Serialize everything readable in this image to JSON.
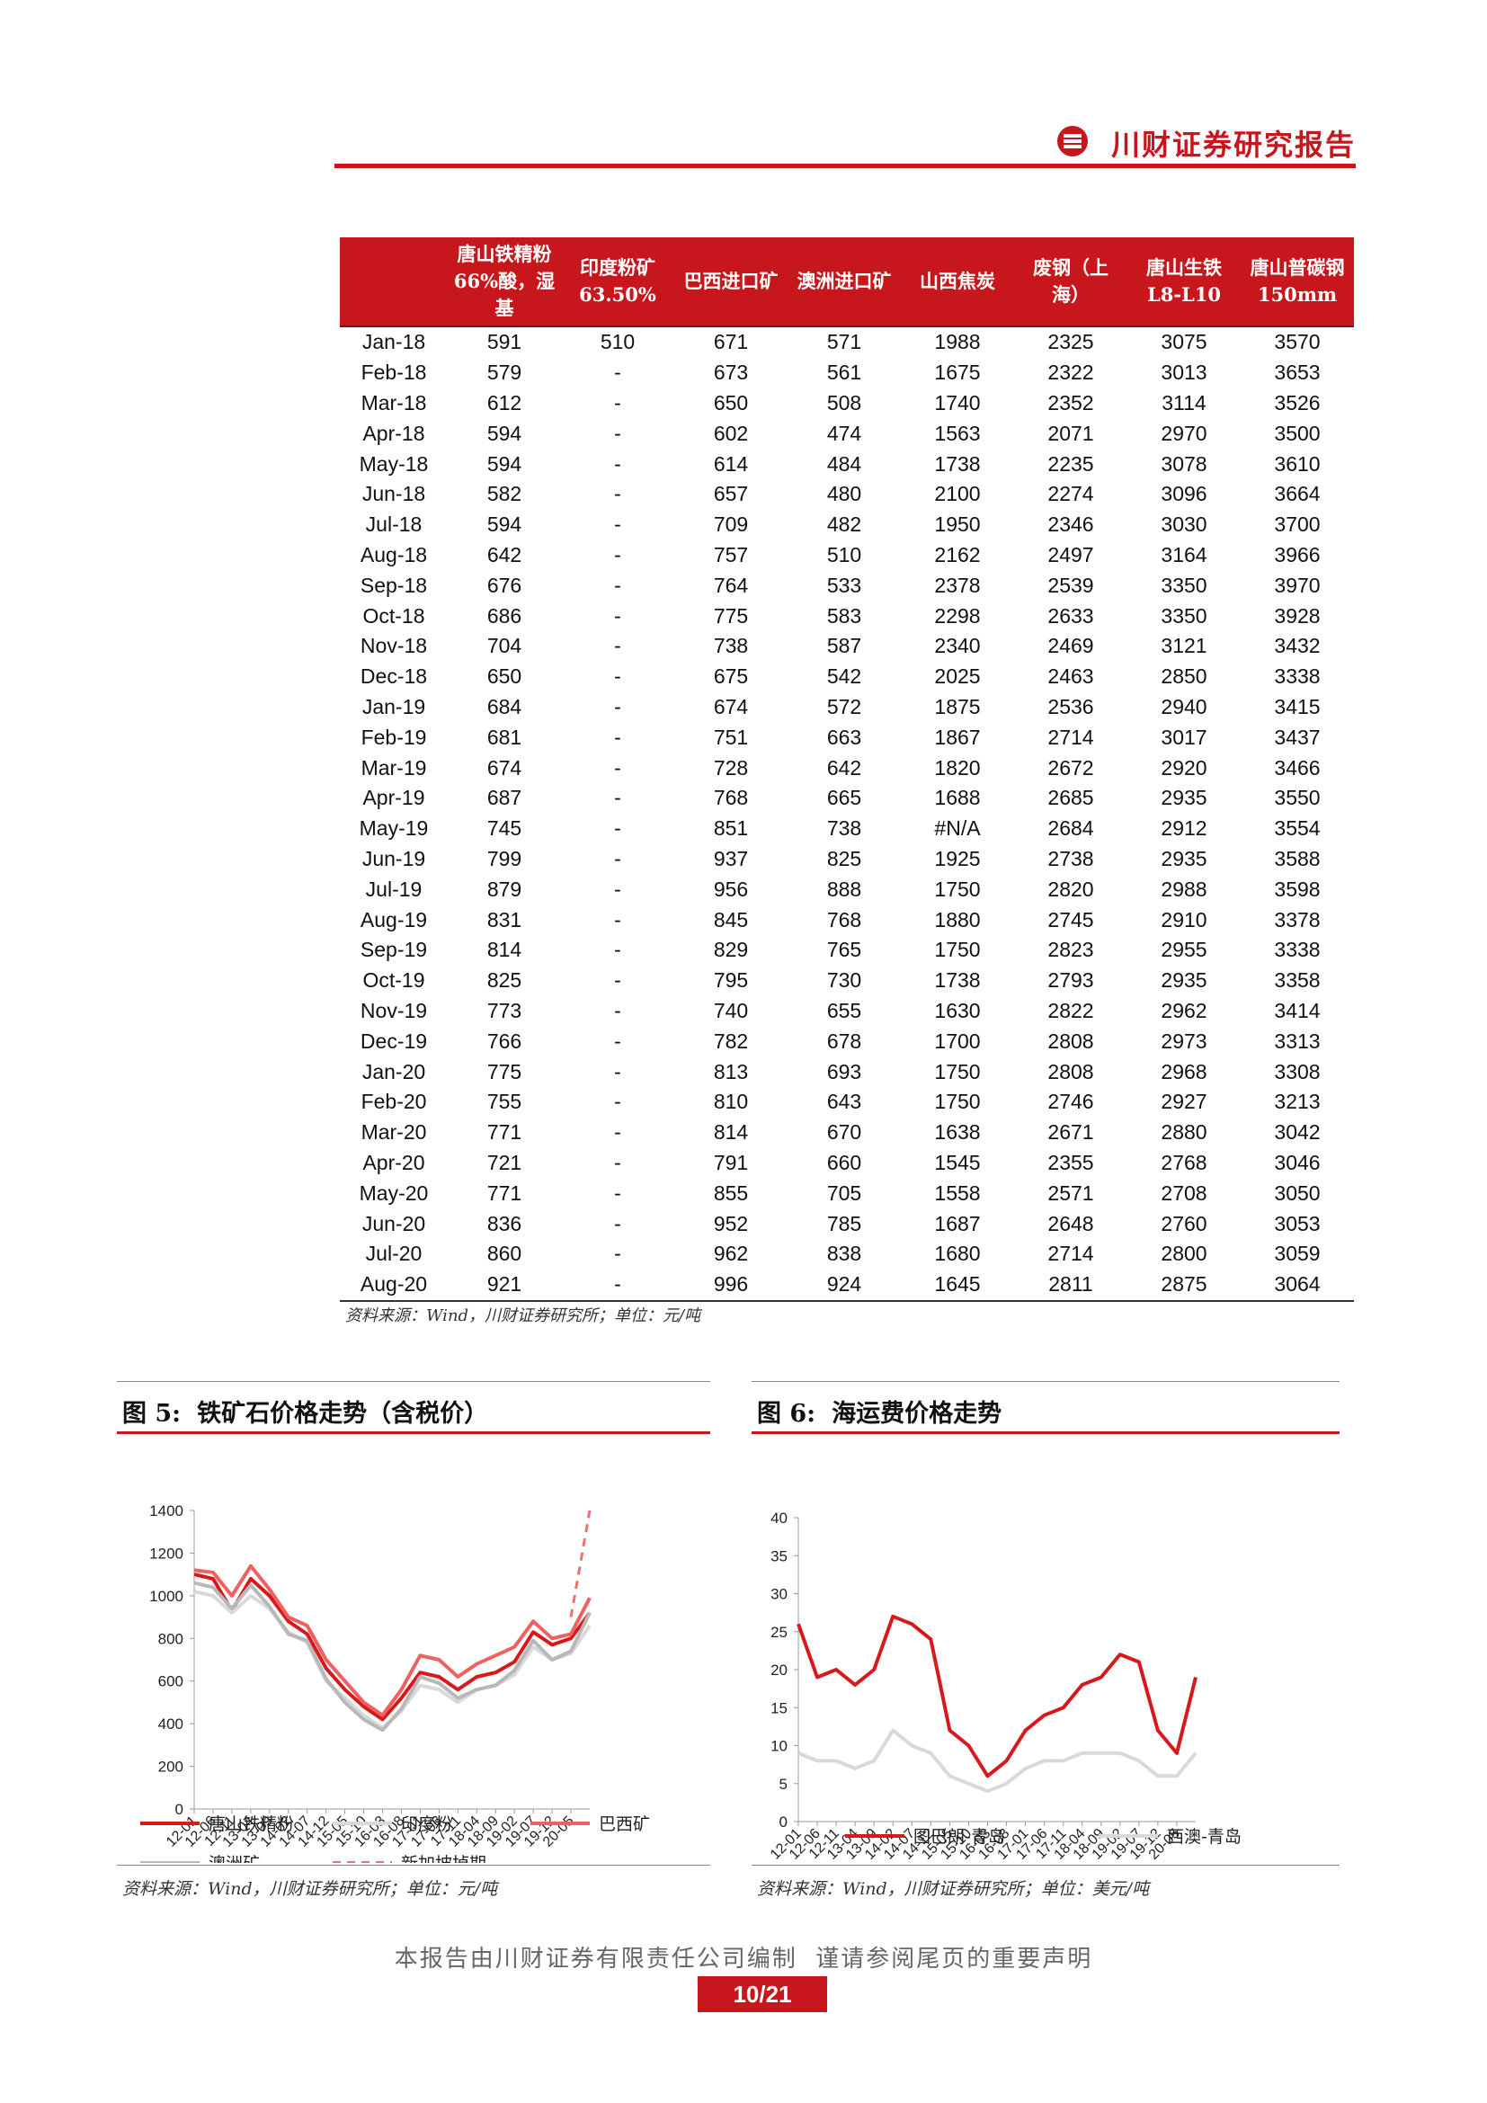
{
  "header": {
    "title": "川财证券研究报告"
  },
  "table": {
    "columns": [
      "",
      "唐山铁精粉66%酸，湿基",
      "印度粉矿 63.50%",
      "巴西进口矿",
      "澳洲进口矿",
      "山西焦炭",
      "废钢（上海）",
      "唐山生铁L8-L10",
      "唐山普碳钢150mm"
    ],
    "rows": [
      [
        "Jan-18",
        "591",
        "510",
        "671",
        "571",
        "1988",
        "2325",
        "3075",
        "3570"
      ],
      [
        "Feb-18",
        "579",
        "-",
        "673",
        "561",
        "1675",
        "2322",
        "3013",
        "3653"
      ],
      [
        "Mar-18",
        "612",
        "-",
        "650",
        "508",
        "1740",
        "2352",
        "3114",
        "3526"
      ],
      [
        "Apr-18",
        "594",
        "-",
        "602",
        "474",
        "1563",
        "2071",
        "2970",
        "3500"
      ],
      [
        "May-18",
        "594",
        "-",
        "614",
        "484",
        "1738",
        "2235",
        "3078",
        "3610"
      ],
      [
        "Jun-18",
        "582",
        "-",
        "657",
        "480",
        "2100",
        "2274",
        "3096",
        "3664"
      ],
      [
        "Jul-18",
        "594",
        "-",
        "709",
        "482",
        "1950",
        "2346",
        "3030",
        "3700"
      ],
      [
        "Aug-18",
        "642",
        "-",
        "757",
        "510",
        "2162",
        "2497",
        "3164",
        "3966"
      ],
      [
        "Sep-18",
        "676",
        "-",
        "764",
        "533",
        "2378",
        "2539",
        "3350",
        "3970"
      ],
      [
        "Oct-18",
        "686",
        "-",
        "775",
        "583",
        "2298",
        "2633",
        "3350",
        "3928"
      ],
      [
        "Nov-18",
        "704",
        "-",
        "738",
        "587",
        "2340",
        "2469",
        "3121",
        "3432"
      ],
      [
        "Dec-18",
        "650",
        "-",
        "675",
        "542",
        "2025",
        "2463",
        "2850",
        "3338"
      ],
      [
        "Jan-19",
        "684",
        "-",
        "674",
        "572",
        "1875",
        "2536",
        "2940",
        "3415"
      ],
      [
        "Feb-19",
        "681",
        "-",
        "751",
        "663",
        "1867",
        "2714",
        "3017",
        "3437"
      ],
      [
        "Mar-19",
        "674",
        "-",
        "728",
        "642",
        "1820",
        "2672",
        "2920",
        "3466"
      ],
      [
        "Apr-19",
        "687",
        "-",
        "768",
        "665",
        "1688",
        "2685",
        "2935",
        "3550"
      ],
      [
        "May-19",
        "745",
        "-",
        "851",
        "738",
        "#N/A",
        "2684",
        "2912",
        "3554"
      ],
      [
        "Jun-19",
        "799",
        "-",
        "937",
        "825",
        "1925",
        "2738",
        "2935",
        "3588"
      ],
      [
        "Jul-19",
        "879",
        "-",
        "956",
        "888",
        "1750",
        "2820",
        "2988",
        "3598"
      ],
      [
        "Aug-19",
        "831",
        "-",
        "845",
        "768",
        "1880",
        "2745",
        "2910",
        "3378"
      ],
      [
        "Sep-19",
        "814",
        "-",
        "829",
        "765",
        "1750",
        "2823",
        "2955",
        "3338"
      ],
      [
        "Oct-19",
        "825",
        "-",
        "795",
        "730",
        "1738",
        "2793",
        "2935",
        "3358"
      ],
      [
        "Nov-19",
        "773",
        "-",
        "740",
        "655",
        "1630",
        "2822",
        "2962",
        "3414"
      ],
      [
        "Dec-19",
        "766",
        "-",
        "782",
        "678",
        "1700",
        "2808",
        "2973",
        "3313"
      ],
      [
        "Jan-20",
        "775",
        "-",
        "813",
        "693",
        "1750",
        "2808",
        "2968",
        "3308"
      ],
      [
        "Feb-20",
        "755",
        "-",
        "810",
        "643",
        "1750",
        "2746",
        "2927",
        "3213"
      ],
      [
        "Mar-20",
        "771",
        "-",
        "814",
        "670",
        "1638",
        "2671",
        "2880",
        "3042"
      ],
      [
        "Apr-20",
        "721",
        "-",
        "791",
        "660",
        "1545",
        "2355",
        "2768",
        "3046"
      ],
      [
        "May-20",
        "771",
        "-",
        "855",
        "705",
        "1558",
        "2571",
        "2708",
        "3050"
      ],
      [
        "Jun-20",
        "836",
        "-",
        "952",
        "785",
        "1687",
        "2648",
        "2760",
        "3053"
      ],
      [
        "Jul-20",
        "860",
        "-",
        "962",
        "838",
        "1680",
        "2714",
        "2800",
        "3059"
      ],
      [
        "Aug-20",
        "921",
        "-",
        "996",
        "924",
        "1645",
        "2811",
        "2875",
        "3064"
      ]
    ],
    "source": "资料来源：Wind，川财证券研究所；单位：元/吨"
  },
  "figure5": {
    "num": "图 5:",
    "title": "铁矿石价格走势（含税价）",
    "source": "资料来源：Wind，川财证券研究所；单位：元/吨"
  },
  "figure6": {
    "num": "图 6:",
    "title": "海运费价格走势",
    "source": "资料来源：Wind，川财证券研究所；单位：美元/吨"
  },
  "chart_data": [
    {
      "type": "line",
      "ylim": [
        0,
        1400
      ],
      "yticks": [
        0,
        200,
        400,
        600,
        800,
        1000,
        1200,
        1400
      ],
      "x_tick_labels": [
        "12-01",
        "12-06",
        "12-11",
        "13-04",
        "13-09",
        "14-02",
        "14-07",
        "14-12",
        "15-05",
        "15-10",
        "16-03",
        "16-08",
        "17-01",
        "17-06",
        "17-11",
        "18-04",
        "18-09",
        "19-02",
        "19-07",
        "19-12",
        "20-05"
      ],
      "x": [
        "12-01",
        "12-06",
        "12-11",
        "13-04",
        "13-09",
        "14-02",
        "14-07",
        "14-12",
        "15-05",
        "15-10",
        "16-03",
        "16-08",
        "17-01",
        "17-06",
        "17-11",
        "18-04",
        "18-09",
        "19-02",
        "19-07",
        "19-12",
        "20-05",
        "20-08"
      ],
      "legend_placement": "bottom",
      "series": [
        {
          "name": "唐山铁精粉",
          "color": "#d7191c",
          "style": "solid",
          "values": [
            1100,
            1080,
            930,
            1080,
            1000,
            880,
            820,
            660,
            560,
            480,
            420,
            520,
            640,
            620,
            560,
            620,
            640,
            690,
            830,
            770,
            800,
            920
          ]
        },
        {
          "name": "印度粉",
          "color": "#d9d9d9",
          "style": "solid",
          "values": [
            1020,
            1000,
            920,
            1000,
            940,
            830,
            780,
            600,
            520,
            440,
            380,
            460,
            580,
            560,
            500,
            560,
            580,
            630,
            760,
            700,
            730,
            860
          ]
        },
        {
          "name": "巴西矿",
          "color": "#f06060",
          "style": "solid",
          "values": [
            1120,
            1110,
            1000,
            1140,
            1030,
            900,
            860,
            700,
            600,
            500,
            440,
            560,
            720,
            700,
            620,
            680,
            720,
            760,
            880,
            800,
            820,
            990
          ]
        },
        {
          "name": "澳洲矿",
          "color": "#b8b8b8",
          "style": "solid",
          "values": [
            1060,
            1040,
            940,
            1050,
            950,
            820,
            790,
            610,
            500,
            420,
            370,
            470,
            620,
            590,
            520,
            560,
            580,
            650,
            790,
            700,
            740,
            920
          ]
        },
        {
          "name": "新加坡掉期",
          "color": "#f07070",
          "style": "dashed",
          "values": [
            null,
            null,
            null,
            null,
            null,
            null,
            null,
            null,
            null,
            null,
            null,
            null,
            null,
            null,
            null,
            null,
            null,
            null,
            null,
            null,
            900,
            1400
          ]
        }
      ]
    },
    {
      "type": "line",
      "ylim": [
        0,
        40
      ],
      "yticks": [
        0,
        5,
        10,
        15,
        20,
        25,
        30,
        35,
        40
      ],
      "x_tick_labels": [
        "12-01",
        "12-06",
        "12-11",
        "13-04",
        "13-09",
        "14-02",
        "14-07",
        "14-12",
        "15-05",
        "15-10",
        "16-03",
        "16-08",
        "17-01",
        "17-06",
        "17-11",
        "18-04",
        "18-09",
        "19-02",
        "19-07",
        "19-12",
        "20-05"
      ],
      "x": [
        "12-01",
        "12-06",
        "12-11",
        "13-04",
        "13-09",
        "14-02",
        "14-07",
        "14-12",
        "15-05",
        "15-10",
        "16-03",
        "16-08",
        "17-01",
        "17-06",
        "17-11",
        "18-04",
        "18-09",
        "19-02",
        "19-07",
        "19-12",
        "20-05",
        "20-08"
      ],
      "legend_placement": "bottom",
      "series": [
        {
          "name": "图巴朗-青岛",
          "color": "#d7191c",
          "style": "solid",
          "values": [
            26,
            19,
            20,
            18,
            20,
            27,
            26,
            24,
            12,
            10,
            6,
            8,
            12,
            14,
            15,
            18,
            19,
            22,
            21,
            12,
            9,
            19
          ]
        },
        {
          "name": "西澳-青岛",
          "color": "#d9d9d9",
          "style": "solid",
          "values": [
            9,
            8,
            8,
            7,
            8,
            12,
            10,
            9,
            6,
            5,
            4,
            5,
            7,
            8,
            8,
            9,
            9,
            9,
            8,
            6,
            6,
            9
          ]
        }
      ]
    }
  ]
}
